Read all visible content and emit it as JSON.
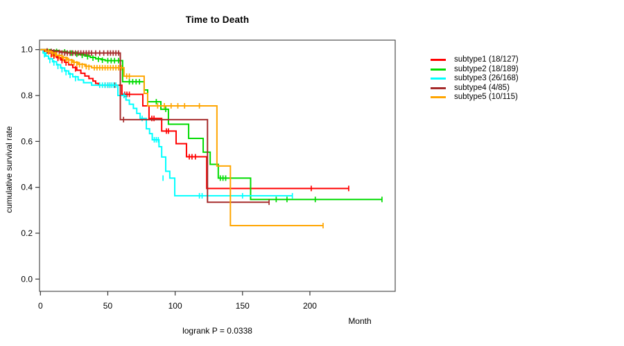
{
  "chart_data": {
    "type": "line",
    "variant": "kaplan-meier-step-curves",
    "title": "Time to Death",
    "xlabel": "Month",
    "ylabel": "cumulative survival rate",
    "footnote": "logrank P = 0.0338",
    "x_ticks": [
      0,
      50,
      100,
      150,
      200
    ],
    "y_ticks": [
      0.0,
      0.2,
      0.4,
      0.6,
      0.8,
      1.0
    ],
    "xlim": [
      0,
      263
    ],
    "ylim": [
      0,
      1.04
    ],
    "grid": false,
    "legend_position": "right",
    "censor_mark": "vertical-tick",
    "series": [
      {
        "name": "subtype1",
        "label": "subtype1 (18/127)",
        "color": "#ff0000",
        "steps": [
          [
            0,
            1
          ],
          [
            3,
            0.993
          ],
          [
            6,
            0.985
          ],
          [
            9,
            0.975
          ],
          [
            12,
            0.965
          ],
          [
            15,
            0.955
          ],
          [
            18,
            0.945
          ],
          [
            21,
            0.934
          ],
          [
            24,
            0.922
          ],
          [
            27,
            0.91
          ],
          [
            30,
            0.897
          ],
          [
            33,
            0.885
          ],
          [
            36,
            0.874
          ],
          [
            39,
            0.863
          ],
          [
            41,
            0.853
          ],
          [
            43,
            0.845
          ],
          [
            60.5,
            0.805
          ],
          [
            76,
            0.755
          ],
          [
            80.6,
            0.7
          ],
          [
            90,
            0.645
          ],
          [
            100.7,
            0.59
          ],
          [
            108.4,
            0.533
          ],
          [
            123.4,
            0.395
          ]
        ],
        "end_month": 228.8,
        "censors": [
          [
            8,
            0.978
          ],
          [
            10,
            0.972
          ],
          [
            13,
            0.962
          ],
          [
            16,
            0.952
          ],
          [
            19,
            0.942
          ],
          [
            26,
            0.916
          ],
          [
            48,
            0.845
          ],
          [
            50,
            0.845
          ],
          [
            51.5,
            0.845
          ],
          [
            55,
            0.845
          ],
          [
            62.6,
            0.805
          ],
          [
            64.2,
            0.805
          ],
          [
            66,
            0.805
          ],
          [
            82.7,
            0.7
          ],
          [
            84.3,
            0.7
          ],
          [
            93.5,
            0.645
          ],
          [
            95,
            0.645
          ],
          [
            110.5,
            0.533
          ],
          [
            112.5,
            0.533
          ],
          [
            115,
            0.533
          ],
          [
            201,
            0.395
          ],
          [
            228.8,
            0.395
          ]
        ]
      },
      {
        "name": "subtype2",
        "label": "subtype2 (18/189)",
        "color": "#00db00",
        "steps": [
          [
            0,
            1
          ],
          [
            8,
            0.996
          ],
          [
            14,
            0.992
          ],
          [
            20,
            0.988
          ],
          [
            25,
            0.983
          ],
          [
            29,
            0.978
          ],
          [
            33,
            0.972
          ],
          [
            37,
            0.966
          ],
          [
            41,
            0.96
          ],
          [
            45,
            0.956
          ],
          [
            48,
            0.952
          ],
          [
            61,
            0.86
          ],
          [
            77,
            0.824
          ],
          [
            79.6,
            0.773
          ],
          [
            89.4,
            0.74
          ],
          [
            95,
            0.675
          ],
          [
            110,
            0.613
          ],
          [
            120.8,
            0.553
          ],
          [
            126,
            0.5
          ],
          [
            132,
            0.44
          ],
          [
            156,
            0.347
          ]
        ],
        "end_month": 253.5,
        "censors": [
          [
            12,
            0.992
          ],
          [
            18,
            0.99
          ],
          [
            23,
            0.985
          ],
          [
            27,
            0.98
          ],
          [
            31,
            0.975
          ],
          [
            35,
            0.969
          ],
          [
            39,
            0.963
          ],
          [
            43,
            0.958
          ],
          [
            46,
            0.954
          ],
          [
            50,
            0.952
          ],
          [
            52.5,
            0.952
          ],
          [
            55,
            0.952
          ],
          [
            58,
            0.952
          ],
          [
            66,
            0.86
          ],
          [
            68.5,
            0.86
          ],
          [
            71,
            0.86
          ],
          [
            73.5,
            0.86
          ],
          [
            86,
            0.773
          ],
          [
            93,
            0.74
          ],
          [
            133.5,
            0.44
          ],
          [
            135.5,
            0.44
          ],
          [
            137.5,
            0.44
          ],
          [
            175,
            0.347
          ],
          [
            183,
            0.347
          ],
          [
            204,
            0.347
          ],
          [
            253.5,
            0.347
          ]
        ]
      },
      {
        "name": "subtype3",
        "label": "subtype3 (26/168)",
        "color": "#00ffff",
        "steps": [
          [
            0,
            1
          ],
          [
            2,
            0.985
          ],
          [
            4,
            0.972
          ],
          [
            6,
            0.96
          ],
          [
            9,
            0.947
          ],
          [
            12,
            0.934
          ],
          [
            15,
            0.92
          ],
          [
            18,
            0.907
          ],
          [
            21,
            0.894
          ],
          [
            24,
            0.882
          ],
          [
            28,
            0.868
          ],
          [
            32,
            0.856
          ],
          [
            38,
            0.845
          ],
          [
            57.5,
            0.8
          ],
          [
            63.5,
            0.78
          ],
          [
            66,
            0.762
          ],
          [
            69,
            0.744
          ],
          [
            71.5,
            0.722
          ],
          [
            74,
            0.7
          ],
          [
            78.6,
            0.655
          ],
          [
            81,
            0.634
          ],
          [
            83,
            0.607
          ],
          [
            88,
            0.577
          ],
          [
            90,
            0.532
          ],
          [
            93,
            0.47
          ],
          [
            96,
            0.44
          ],
          [
            99.7,
            0.363
          ]
        ],
        "end_month": 187,
        "censors": [
          [
            3,
            0.978
          ],
          [
            7,
            0.953
          ],
          [
            10,
            0.942
          ],
          [
            13,
            0.927
          ],
          [
            16,
            0.913
          ],
          [
            19,
            0.9
          ],
          [
            22,
            0.888
          ],
          [
            26,
            0.874
          ],
          [
            44,
            0.845
          ],
          [
            46,
            0.845
          ],
          [
            48,
            0.845
          ],
          [
            50,
            0.845
          ],
          [
            51.5,
            0.845
          ],
          [
            53,
            0.845
          ],
          [
            54.5,
            0.845
          ],
          [
            56,
            0.845
          ],
          [
            62,
            0.8
          ],
          [
            75.5,
            0.7
          ],
          [
            84.5,
            0.607
          ],
          [
            86,
            0.607
          ],
          [
            87.5,
            0.607
          ],
          [
            91,
            0.44
          ],
          [
            118,
            0.363
          ],
          [
            120,
            0.363
          ],
          [
            150,
            0.363
          ],
          [
            187,
            0.363
          ]
        ]
      },
      {
        "name": "subtype4",
        "label": "subtype4 (4/85)",
        "color": "#a52a2a",
        "steps": [
          [
            0,
            1
          ],
          [
            4,
            0.996
          ],
          [
            9,
            0.992
          ],
          [
            15,
            0.988
          ],
          [
            19,
            0.985
          ],
          [
            59.3,
            0.695
          ],
          [
            124,
            0.335
          ]
        ],
        "end_month": 169.7,
        "censors": [
          [
            5,
            0.994
          ],
          [
            8,
            0.992
          ],
          [
            10,
            0.99
          ],
          [
            12,
            0.988
          ],
          [
            14,
            0.988
          ],
          [
            16,
            0.985
          ],
          [
            18,
            0.985
          ],
          [
            20,
            0.985
          ],
          [
            22,
            0.985
          ],
          [
            24,
            0.985
          ],
          [
            26,
            0.985
          ],
          [
            28,
            0.985
          ],
          [
            30,
            0.985
          ],
          [
            32,
            0.985
          ],
          [
            34,
            0.985
          ],
          [
            36,
            0.985
          ],
          [
            38,
            0.985
          ],
          [
            41,
            0.985
          ],
          [
            44,
            0.985
          ],
          [
            47,
            0.985
          ],
          [
            50,
            0.985
          ],
          [
            52,
            0.985
          ],
          [
            54,
            0.985
          ],
          [
            56,
            0.985
          ],
          [
            58,
            0.985
          ],
          [
            61.7,
            0.695
          ],
          [
            169.7,
            0.335
          ]
        ]
      },
      {
        "name": "subtype5",
        "label": "subtype5 (10/115)",
        "color": "#ffa500",
        "steps": [
          [
            0,
            1
          ],
          [
            4,
            0.993
          ],
          [
            8,
            0.985
          ],
          [
            12,
            0.975
          ],
          [
            16,
            0.965
          ],
          [
            20,
            0.955
          ],
          [
            24,
            0.945
          ],
          [
            28,
            0.936
          ],
          [
            33,
            0.928
          ],
          [
            38,
            0.921
          ],
          [
            62,
            0.884
          ],
          [
            77,
            0.809
          ],
          [
            79.6,
            0.755
          ],
          [
            131,
            0.493
          ],
          [
            141,
            0.233
          ]
        ],
        "end_month": 209.8,
        "censors": [
          [
            6,
            0.99
          ],
          [
            9,
            0.981
          ],
          [
            11,
            0.978
          ],
          [
            14,
            0.97
          ],
          [
            17,
            0.962
          ],
          [
            19,
            0.958
          ],
          [
            21,
            0.952
          ],
          [
            23,
            0.948
          ],
          [
            25,
            0.943
          ],
          [
            27,
            0.938
          ],
          [
            29,
            0.934
          ],
          [
            31,
            0.93
          ],
          [
            34,
            0.926
          ],
          [
            36,
            0.923
          ],
          [
            40,
            0.921
          ],
          [
            42,
            0.921
          ],
          [
            44,
            0.921
          ],
          [
            46,
            0.921
          ],
          [
            48,
            0.921
          ],
          [
            50,
            0.921
          ],
          [
            52,
            0.921
          ],
          [
            54,
            0.921
          ],
          [
            56,
            0.921
          ],
          [
            58,
            0.921
          ],
          [
            60,
            0.921
          ],
          [
            64,
            0.884
          ],
          [
            66,
            0.884
          ],
          [
            87,
            0.755
          ],
          [
            92,
            0.755
          ],
          [
            97,
            0.755
          ],
          [
            102,
            0.755
          ],
          [
            107,
            0.755
          ],
          [
            118,
            0.755
          ],
          [
            209.8,
            0.233
          ]
        ]
      }
    ]
  }
}
